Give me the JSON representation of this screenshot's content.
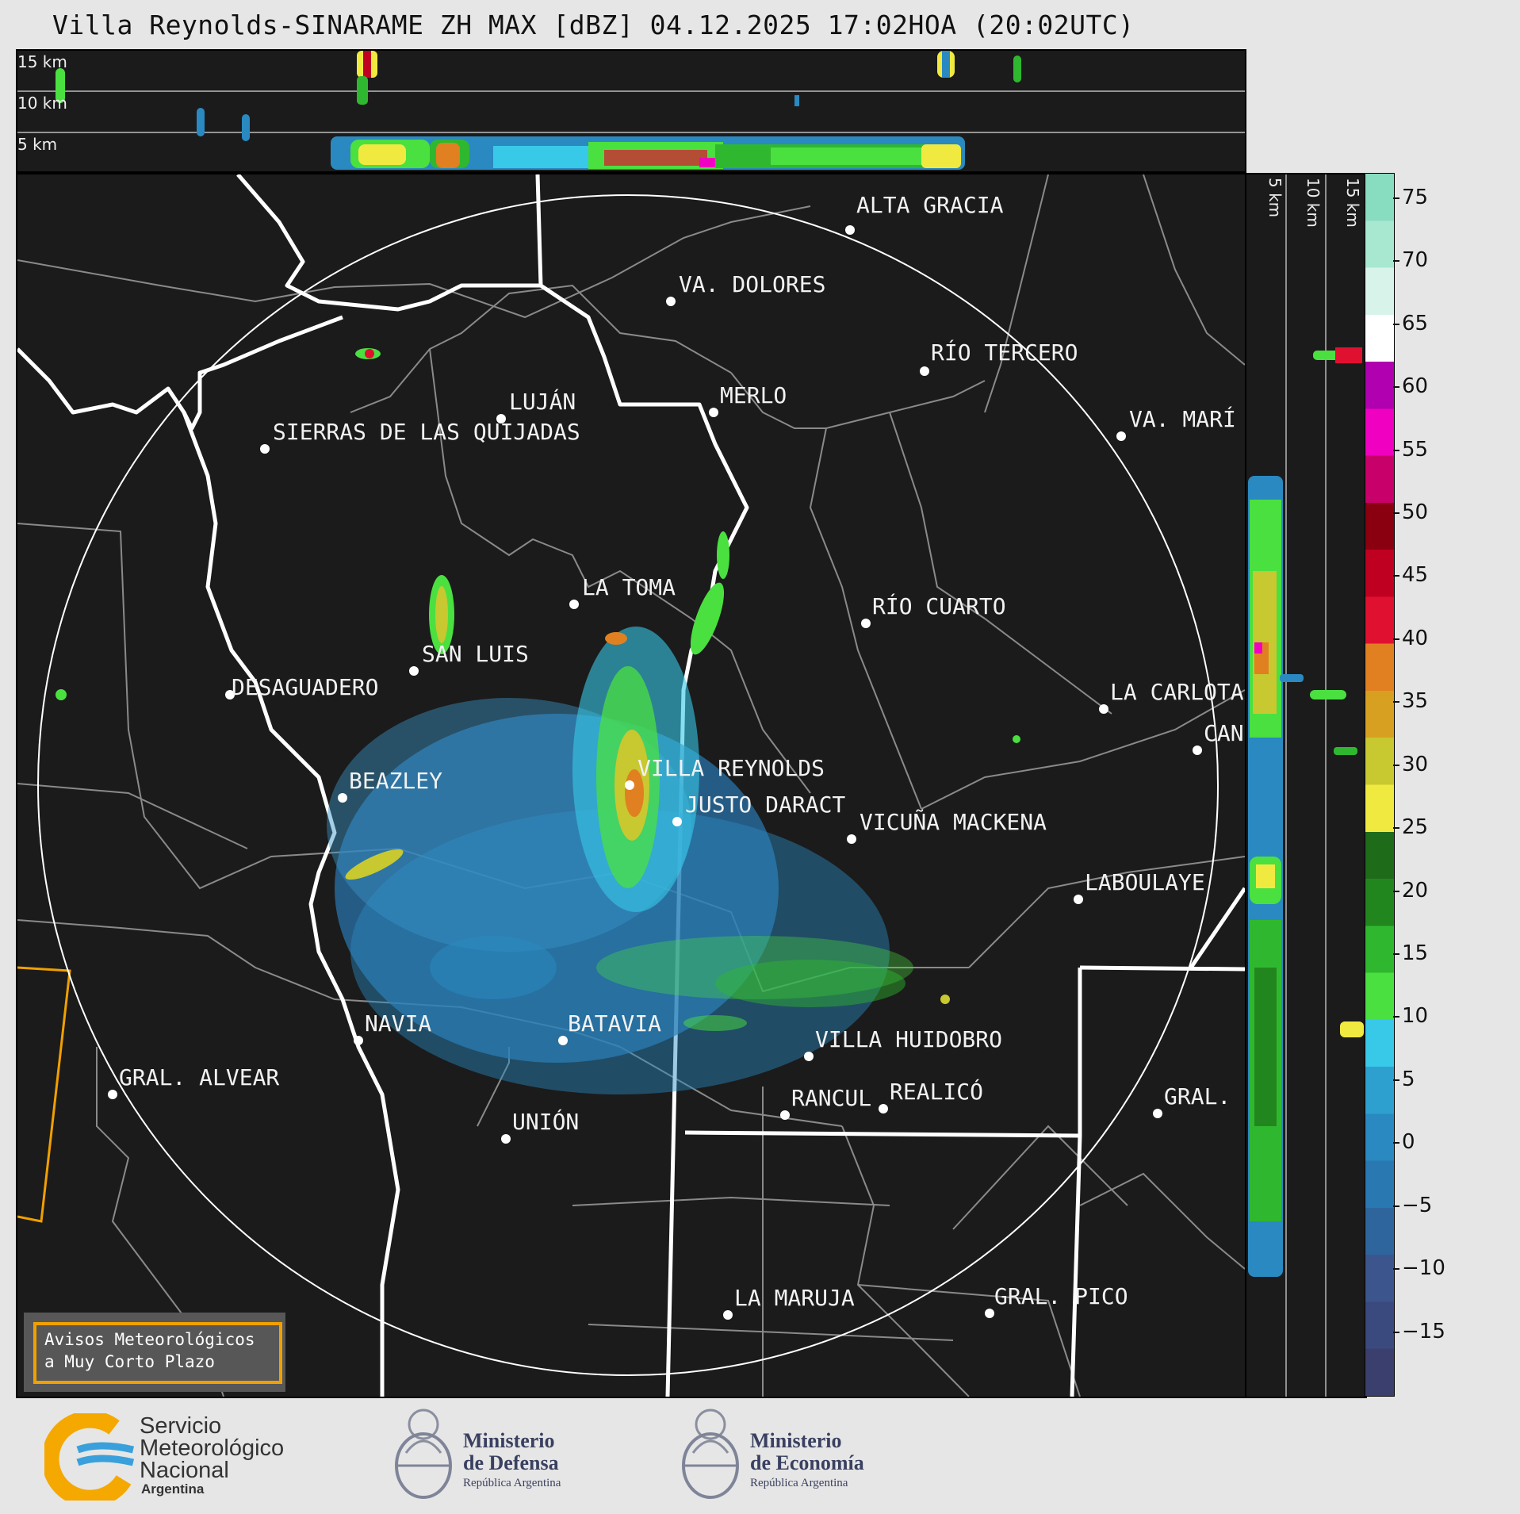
{
  "title": "Villa Reynolds-SINARAME ZH MAX [dBZ] 04.12.2025 17:02HOA (20:02UTC)",
  "top_panel": {
    "altitude_labels": [
      "15 km",
      "10 km",
      "5 km"
    ]
  },
  "side_panel": {
    "altitude_labels": [
      "5 km",
      "10 km",
      "15 km"
    ]
  },
  "map": {
    "cities": [
      {
        "name": "ALTA GRACIA"
      },
      {
        "name": "VA. DOLORES"
      },
      {
        "name": "RÍO TERCERO"
      },
      {
        "name": "LUJÁN"
      },
      {
        "name": "MERLO"
      },
      {
        "name": "SIERRAS DE LAS QUIJADAS"
      },
      {
        "name": "VA. MARÍ"
      },
      {
        "name": "LA TOMA"
      },
      {
        "name": "RÍO CUARTO"
      },
      {
        "name": "SAN LUIS"
      },
      {
        "name": "DESAGUADERO"
      },
      {
        "name": "LA CARLOTA"
      },
      {
        "name": "CAN"
      },
      {
        "name": "VILLA REYNOLDS"
      },
      {
        "name": "BEAZLEY"
      },
      {
        "name": "JUSTO DARACT"
      },
      {
        "name": "VICUÑA MACKENA"
      },
      {
        "name": "LABOULAYE"
      },
      {
        "name": "NAVIA"
      },
      {
        "name": "BATAVIA"
      },
      {
        "name": "VILLA HUIDOBRO"
      },
      {
        "name": "GRAL. ALVEAR"
      },
      {
        "name": "RANCUL"
      },
      {
        "name": "REALICÓ"
      },
      {
        "name": "GRAL."
      },
      {
        "name": "UNIÓN"
      },
      {
        "name": "LA MARUJA"
      },
      {
        "name": "GRAL. PICO"
      }
    ],
    "radar_site": "VILLA REYNOLDS"
  },
  "colorbar": {
    "unit": "dBZ",
    "ticks": [
      "75",
      "70",
      "65",
      "60",
      "55",
      "50",
      "45",
      "40",
      "35",
      "30",
      "25",
      "20",
      "15",
      "10",
      "5",
      "0",
      "−5",
      "−10",
      "−15"
    ],
    "colors": [
      "#3b3f6e",
      "#3b4a7e",
      "#3c568d",
      "#2f659d",
      "#2a78b2",
      "#2a89c0",
      "#2ea0d0",
      "#38c8e8",
      "#4ae040",
      "#2fb82f",
      "#22861f",
      "#1e6b1a",
      "#f0ea40",
      "#c8c830",
      "#d8a020",
      "#e08020",
      "#e01030",
      "#c00020",
      "#8a0010",
      "#c8006a",
      "#f000c0",
      "#b000b0",
      "#ffffff",
      "#d8f4ea",
      "#a8e8d0",
      "#88dcc0"
    ]
  },
  "notice": {
    "line1": "Avisos Meteorológicos",
    "line2": "a Muy Corto Plazo"
  },
  "logos": {
    "smn": {
      "line1": "Servicio",
      "line2": "Meteorológico",
      "line3": "Nacional",
      "line4": "Argentina"
    },
    "defensa": {
      "line1": "Ministerio",
      "line2": "de Defensa",
      "line3": "República Argentina"
    },
    "economia": {
      "line1": "Ministerio",
      "line2": "de Economía",
      "line3": "República Argentina"
    }
  }
}
